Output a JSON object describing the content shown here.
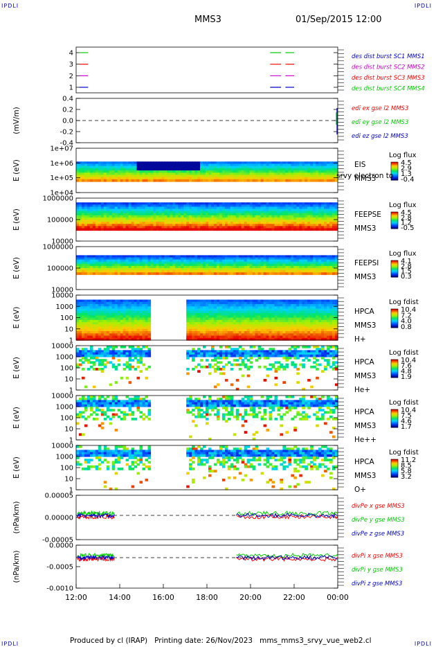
{
  "corners": {
    "tl": "IPDLI",
    "tr": "IPDLI",
    "bl": "IPDLI",
    "br": "IPDLI"
  },
  "header": {
    "spacecraft": "MMS3",
    "datetime": "01/Sep/2015 12:00"
  },
  "footer": "Produced by cl (IRAP)   Printing date: 26/Nov/2023   mms_mms3_srvy_vue_web2.cl",
  "colors": {
    "red": "#ff0000",
    "green": "#00cc00",
    "blue": "#0000cc",
    "magenta": "#cc00cc"
  },
  "chart_data": [
    {
      "id": "burst",
      "type": "line",
      "yticks": [
        "4",
        "3",
        "2",
        "1"
      ],
      "ylim": [
        0.5,
        4.5
      ],
      "series": [
        {
          "name": "des dist burst SC1 MMS1",
          "color": "#0000cc"
        },
        {
          "name": "des dist burst SC2 MMS2",
          "color": "#cc00cc"
        },
        {
          "name": "des dist burst SC3 MMS3",
          "color": "#ff0000"
        },
        {
          "name": "des dist burst SC4 MMS4",
          "color": "#00cc00"
        }
      ]
    },
    {
      "id": "edi",
      "type": "line",
      "ylabel": "(mV/m)",
      "yticks": [
        "0.4",
        "0.2",
        "0.0",
        "-0.2",
        "-0.4"
      ],
      "ylim": [
        -0.5,
        0.5
      ],
      "series": [
        {
          "name": "edi ex gse l2 MMS3",
          "color": "#ff0000"
        },
        {
          "name": "edi ey gse l2 MMS3",
          "color": "#00cc00"
        },
        {
          "name": "edi ez gse l2 MMS3",
          "color": "#0000cc"
        }
      ]
    },
    {
      "id": "eis",
      "type": "heatmap",
      "ylabel": "E (eV)",
      "yticks": [
        "1e+07",
        "1e+06",
        "1e+05",
        "1e+04"
      ],
      "labels": [
        "EIS",
        "MMS3"
      ],
      "overlay_text": "srvy electron to",
      "colorbar": {
        "title": "Log flux",
        "ticks": [
          "4.5",
          "2.9",
          "1.3",
          "-0.4"
        ]
      }
    },
    {
      "id": "feepse",
      "type": "heatmap",
      "ylabel": "E (eV)",
      "yticks": [
        "1000000",
        "100000",
        "10000"
      ],
      "labels": [
        "FEEPSE",
        "MMS3"
      ],
      "colorbar": {
        "title": "Log flux",
        "ticks": [
          "4.5",
          "2.8",
          "1.2",
          "-0.5"
        ]
      }
    },
    {
      "id": "feepsi",
      "type": "heatmap",
      "ylabel": "E (eV)",
      "yticks": [
        "1000000",
        "100000",
        "10000"
      ],
      "labels": [
        "FEEPSI",
        "MMS3"
      ],
      "colorbar": {
        "title": "Log flux",
        "ticks": [
          "4.1",
          "2.8",
          "1.5",
          "0.3"
        ]
      }
    },
    {
      "id": "hpca_h",
      "type": "heatmap",
      "ylabel": "E (eV)",
      "yticks": [
        "10000",
        "1000",
        "100",
        "10",
        "1"
      ],
      "labels": [
        "HPCA",
        "MMS3",
        "H+"
      ],
      "colorbar": {
        "title": "Log fdist",
        "ticks": [
          "10.4",
          "7.2",
          "4.0",
          "0.8"
        ]
      }
    },
    {
      "id": "hpca_he",
      "type": "heatmap",
      "ylabel": "E (eV)",
      "yticks": [
        "10000",
        "1000",
        "100",
        "10",
        "1"
      ],
      "labels": [
        "HPCA",
        "MMS3",
        "He+"
      ],
      "colorbar": {
        "title": "Log fdist",
        "ticks": [
          "10.4",
          "7.6",
          "4.8",
          "1.9"
        ]
      }
    },
    {
      "id": "hpca_hepp",
      "type": "heatmap",
      "ylabel": "E (eV)",
      "yticks": [
        "10000",
        "1000",
        "100",
        "10",
        "1"
      ],
      "labels": [
        "HPCA",
        "MMS3",
        "He++"
      ],
      "colorbar": {
        "title": "Log fdist",
        "ticks": [
          "10.4",
          "7.5",
          "4.6",
          "1.7"
        ]
      }
    },
    {
      "id": "hpca_o",
      "type": "heatmap",
      "ylabel": "E (eV)",
      "yticks": [
        "10000",
        "1000",
        "100",
        "10",
        "1"
      ],
      "labels": [
        "HPCA",
        "MMS3",
        "O+"
      ],
      "colorbar": {
        "title": "Log fdist",
        "ticks": [
          "11.2",
          "8.5",
          "5.8",
          "3.2"
        ]
      }
    },
    {
      "id": "divpe",
      "type": "line",
      "ylabel": "(nPa/km)",
      "yticks": [
        "0.00005",
        "0.00000",
        "-0.00005"
      ],
      "series": [
        {
          "name": "divPe x gse MMS3",
          "color": "#ff0000"
        },
        {
          "name": "divPe y gse MMS3",
          "color": "#00cc00"
        },
        {
          "name": "divPe z gse MMS3",
          "color": "#0000cc"
        }
      ]
    },
    {
      "id": "divpi",
      "type": "line",
      "ylabel": "(nPa/km)",
      "yticks": [
        "0.0000",
        "-0.0005",
        "-0.0010"
      ],
      "series": [
        {
          "name": "divPi x gse MMS3",
          "color": "#ff0000"
        },
        {
          "name": "divPi y gse MMS3",
          "color": "#00cc00"
        },
        {
          "name": "divPi z gse MMS3",
          "color": "#0000cc"
        }
      ]
    }
  ],
  "xaxis": {
    "ticks": [
      "12:00",
      "14:00",
      "16:00",
      "18:00",
      "20:00",
      "22:00",
      "00:00"
    ]
  }
}
